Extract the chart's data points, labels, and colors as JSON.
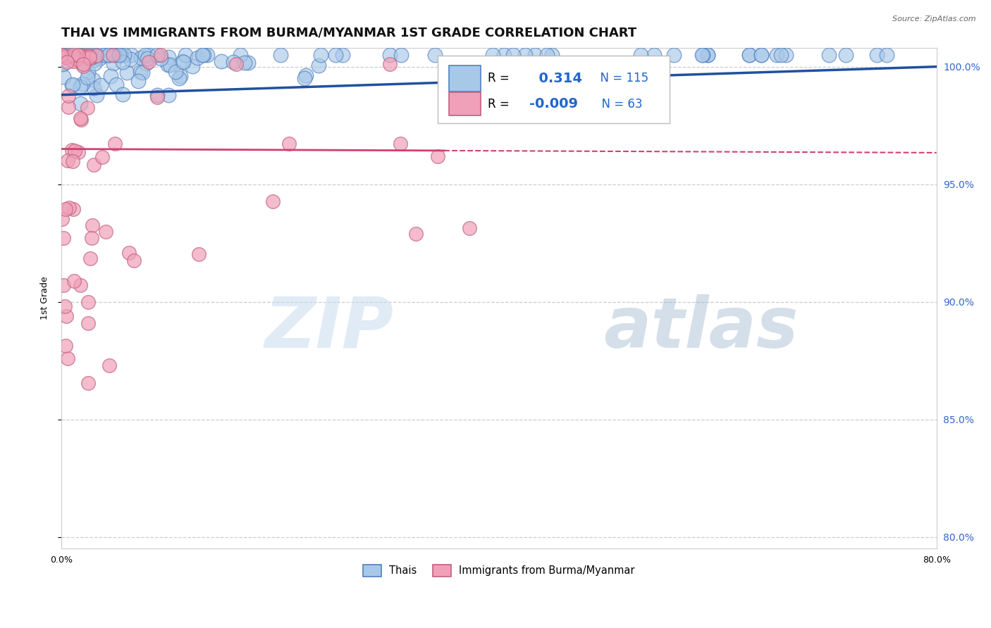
{
  "title": "THAI VS IMMIGRANTS FROM BURMA/MYANMAR 1ST GRADE CORRELATION CHART",
  "source": "Source: ZipAtlas.com",
  "ylabel": "1st Grade",
  "xlim": [
    0.0,
    0.8
  ],
  "ylim": [
    0.795,
    1.008
  ],
  "yticks": [
    0.8,
    0.85,
    0.9,
    0.95,
    1.0
  ],
  "xticks": [
    0.0,
    0.1,
    0.2,
    0.3,
    0.4,
    0.5,
    0.6,
    0.7,
    0.8
  ],
  "xtick_labels": [
    "0.0%",
    "",
    "",
    "",
    "",
    "",
    "",
    "",
    "80.0%"
  ],
  "blue_R": 0.314,
  "blue_N": 115,
  "pink_R": -0.009,
  "pink_N": 63,
  "blue_color": "#A8C8E8",
  "blue_edge": "#5080C0",
  "pink_color": "#F0A0B8",
  "pink_edge": "#C06080",
  "blue_line_color": "#2050A0",
  "pink_line_color": "#D04070",
  "legend_label_blue": "Thais",
  "legend_label_pink": "Immigrants from Burma/Myanmar",
  "watermark_zip": "ZIP",
  "watermark_atlas": "atlas",
  "background_color": "#FFFFFF",
  "grid_color": "#CCCCCC",
  "title_fontsize": 13,
  "axis_label_fontsize": 9,
  "tick_fontsize": 9,
  "blue_line_intercept": 0.988,
  "blue_line_slope": 0.015,
  "pink_line_intercept": 0.965,
  "pink_line_slope": -0.002
}
